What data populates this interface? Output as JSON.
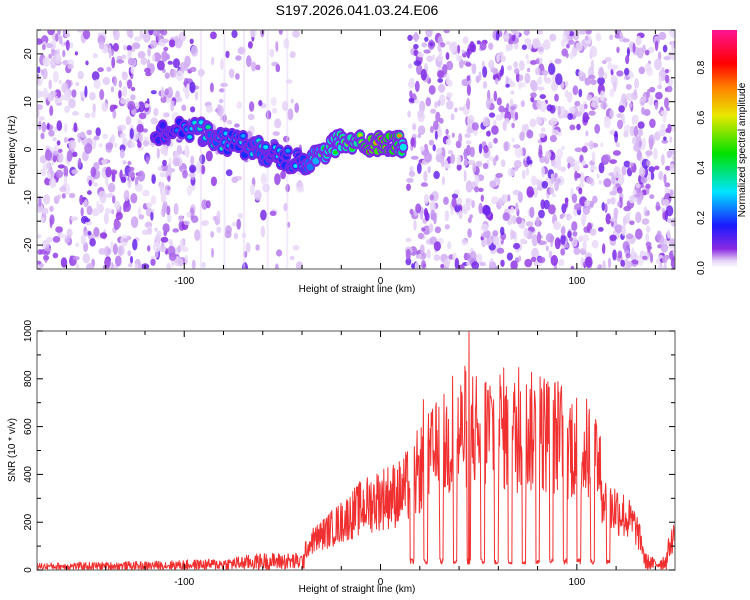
{
  "figure": {
    "title": "S197.2026.041.03.24.E06"
  },
  "chart_data": [
    {
      "type": "heatmap",
      "name": "spectrogram",
      "xlabel": "Height of straight line (km)",
      "ylabel": "Frequency (Hz)",
      "xlim": [
        -175,
        150
      ],
      "ylim": [
        -25,
        25
      ],
      "x_ticks": [
        -100,
        0,
        100
      ],
      "y_ticks": [
        -20,
        -10,
        0,
        10,
        20
      ],
      "colorbar": {
        "label": "Normalized spectral amplitude",
        "range": [
          0.0,
          0.95
        ],
        "ticks": [
          0.0,
          0.2,
          0.4,
          0.6,
          0.8
        ],
        "tick_labels": [
          "0.0",
          "0.2",
          "0.4",
          "0.6",
          "0.8"
        ],
        "colormap": [
          "#ffffff",
          "#e6d4f7",
          "#8a2be2",
          "#1a1aff",
          "#00e5ff",
          "#00e000",
          "#e8e800",
          "#ff7f00",
          "#ff0000",
          "#ff1493"
        ]
      },
      "empty_region_x": [
        -40,
        14
      ],
      "signal_track": [
        {
          "x": -115,
          "y": 3,
          "amp": 0.2
        },
        {
          "x": -105,
          "y": 5,
          "amp": 0.25
        },
        {
          "x": -92,
          "y": 4,
          "amp": 0.35
        },
        {
          "x": -85,
          "y": 2,
          "amp": 0.35
        },
        {
          "x": -78,
          "y": 1.5,
          "amp": 0.3
        },
        {
          "x": -70,
          "y": 1,
          "amp": 0.3
        },
        {
          "x": -62,
          "y": 0,
          "amp": 0.35
        },
        {
          "x": -55,
          "y": -1,
          "amp": 0.3
        },
        {
          "x": -48,
          "y": -2,
          "amp": 0.3
        },
        {
          "x": -40,
          "y": -3,
          "amp": 0.3
        },
        {
          "x": -33,
          "y": -2,
          "amp": 0.45
        },
        {
          "x": -26,
          "y": 0,
          "amp": 0.5
        },
        {
          "x": -20,
          "y": 2,
          "amp": 0.55
        },
        {
          "x": -12,
          "y": 2,
          "amp": 0.6
        },
        {
          "x": -4,
          "y": 1,
          "amp": 0.85
        },
        {
          "x": 2,
          "y": 1.5,
          "amp": 0.8
        },
        {
          "x": 8,
          "y": 1.5,
          "amp": 0.75
        },
        {
          "x": 12,
          "y": 1,
          "amp": 0.5
        }
      ]
    },
    {
      "type": "line",
      "name": "snr",
      "xlabel": "Height of straight line (km)",
      "ylabel": "SNR (10 * v/v)",
      "xlim": [
        -175,
        150
      ],
      "ylim": [
        0,
        1000
      ],
      "x_ticks": [
        -100,
        0,
        100
      ],
      "y_ticks": [
        0,
        200,
        400,
        600,
        800,
        1000
      ],
      "color": "#f03030",
      "envelope": {
        "x": [
          -175,
          -120,
          -80,
          -60,
          -40,
          -35,
          -20,
          -10,
          0,
          10,
          15,
          20,
          30,
          40,
          45,
          50,
          60,
          70,
          80,
          90,
          100,
          110,
          115,
          120,
          130,
          135,
          140,
          145,
          150
        ],
        "y": [
          25,
          30,
          40,
          60,
          60,
          120,
          200,
          260,
          300,
          320,
          360,
          420,
          500,
          560,
          620,
          580,
          600,
          560,
          580,
          560,
          520,
          480,
          260,
          260,
          180,
          60,
          40,
          60,
          150
        ]
      },
      "dropouts_x": [
        16,
        23,
        31,
        38,
        45,
        52,
        59,
        66,
        73,
        80,
        87,
        94,
        101,
        108,
        116
      ],
      "dropout_level": 40,
      "peak": {
        "x": 45,
        "y": 1000
      }
    }
  ]
}
